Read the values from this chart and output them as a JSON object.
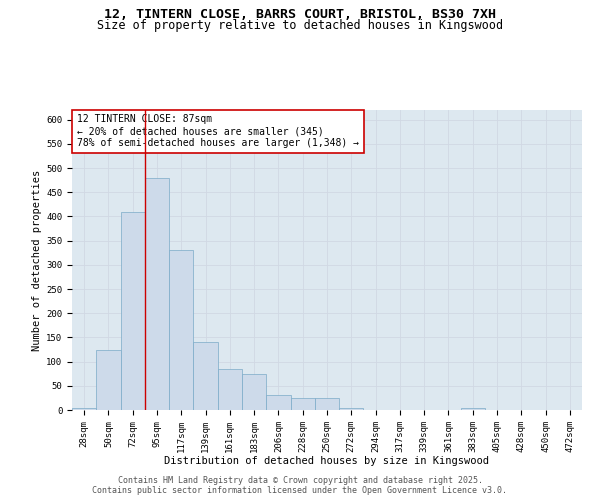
{
  "title_line1": "12, TINTERN CLOSE, BARRS COURT, BRISTOL, BS30 7XH",
  "title_line2": "Size of property relative to detached houses in Kingswood",
  "xlabel": "Distribution of detached houses by size in Kingswood",
  "ylabel": "Number of detached properties",
  "bar_labels": [
    "28sqm",
    "50sqm",
    "72sqm",
    "95sqm",
    "117sqm",
    "139sqm",
    "161sqm",
    "183sqm",
    "206sqm",
    "228sqm",
    "250sqm",
    "272sqm",
    "294sqm",
    "317sqm",
    "339sqm",
    "361sqm",
    "383sqm",
    "405sqm",
    "428sqm",
    "450sqm",
    "472sqm"
  ],
  "bar_values": [
    5,
    125,
    410,
    480,
    330,
    140,
    85,
    75,
    30,
    25,
    25,
    5,
    0,
    0,
    0,
    0,
    5,
    0,
    0,
    0,
    0
  ],
  "bar_color": "#cddaea",
  "bar_edge_color": "#7aaac8",
  "property_line_x": 2.5,
  "annotation_line1": "12 TINTERN CLOSE: 87sqm",
  "annotation_line2": "← 20% of detached houses are smaller (345)",
  "annotation_line3": "78% of semi-detached houses are larger (1,348) →",
  "annotation_box_facecolor": "#ffffff",
  "annotation_box_edgecolor": "#cc0000",
  "vline_color": "#cc0000",
  "ylim": [
    0,
    620
  ],
  "yticks": [
    0,
    50,
    100,
    150,
    200,
    250,
    300,
    350,
    400,
    450,
    500,
    550,
    600
  ],
  "grid_color": "#d0d8e4",
  "bg_color": "#dde8f0",
  "footer_line1": "Contains HM Land Registry data © Crown copyright and database right 2025.",
  "footer_line2": "Contains public sector information licensed under the Open Government Licence v3.0.",
  "title_fontsize": 9.5,
  "subtitle_fontsize": 8.5,
  "axis_label_fontsize": 7.5,
  "tick_fontsize": 6.5,
  "annotation_fontsize": 7.0,
  "footer_fontsize": 6.0
}
